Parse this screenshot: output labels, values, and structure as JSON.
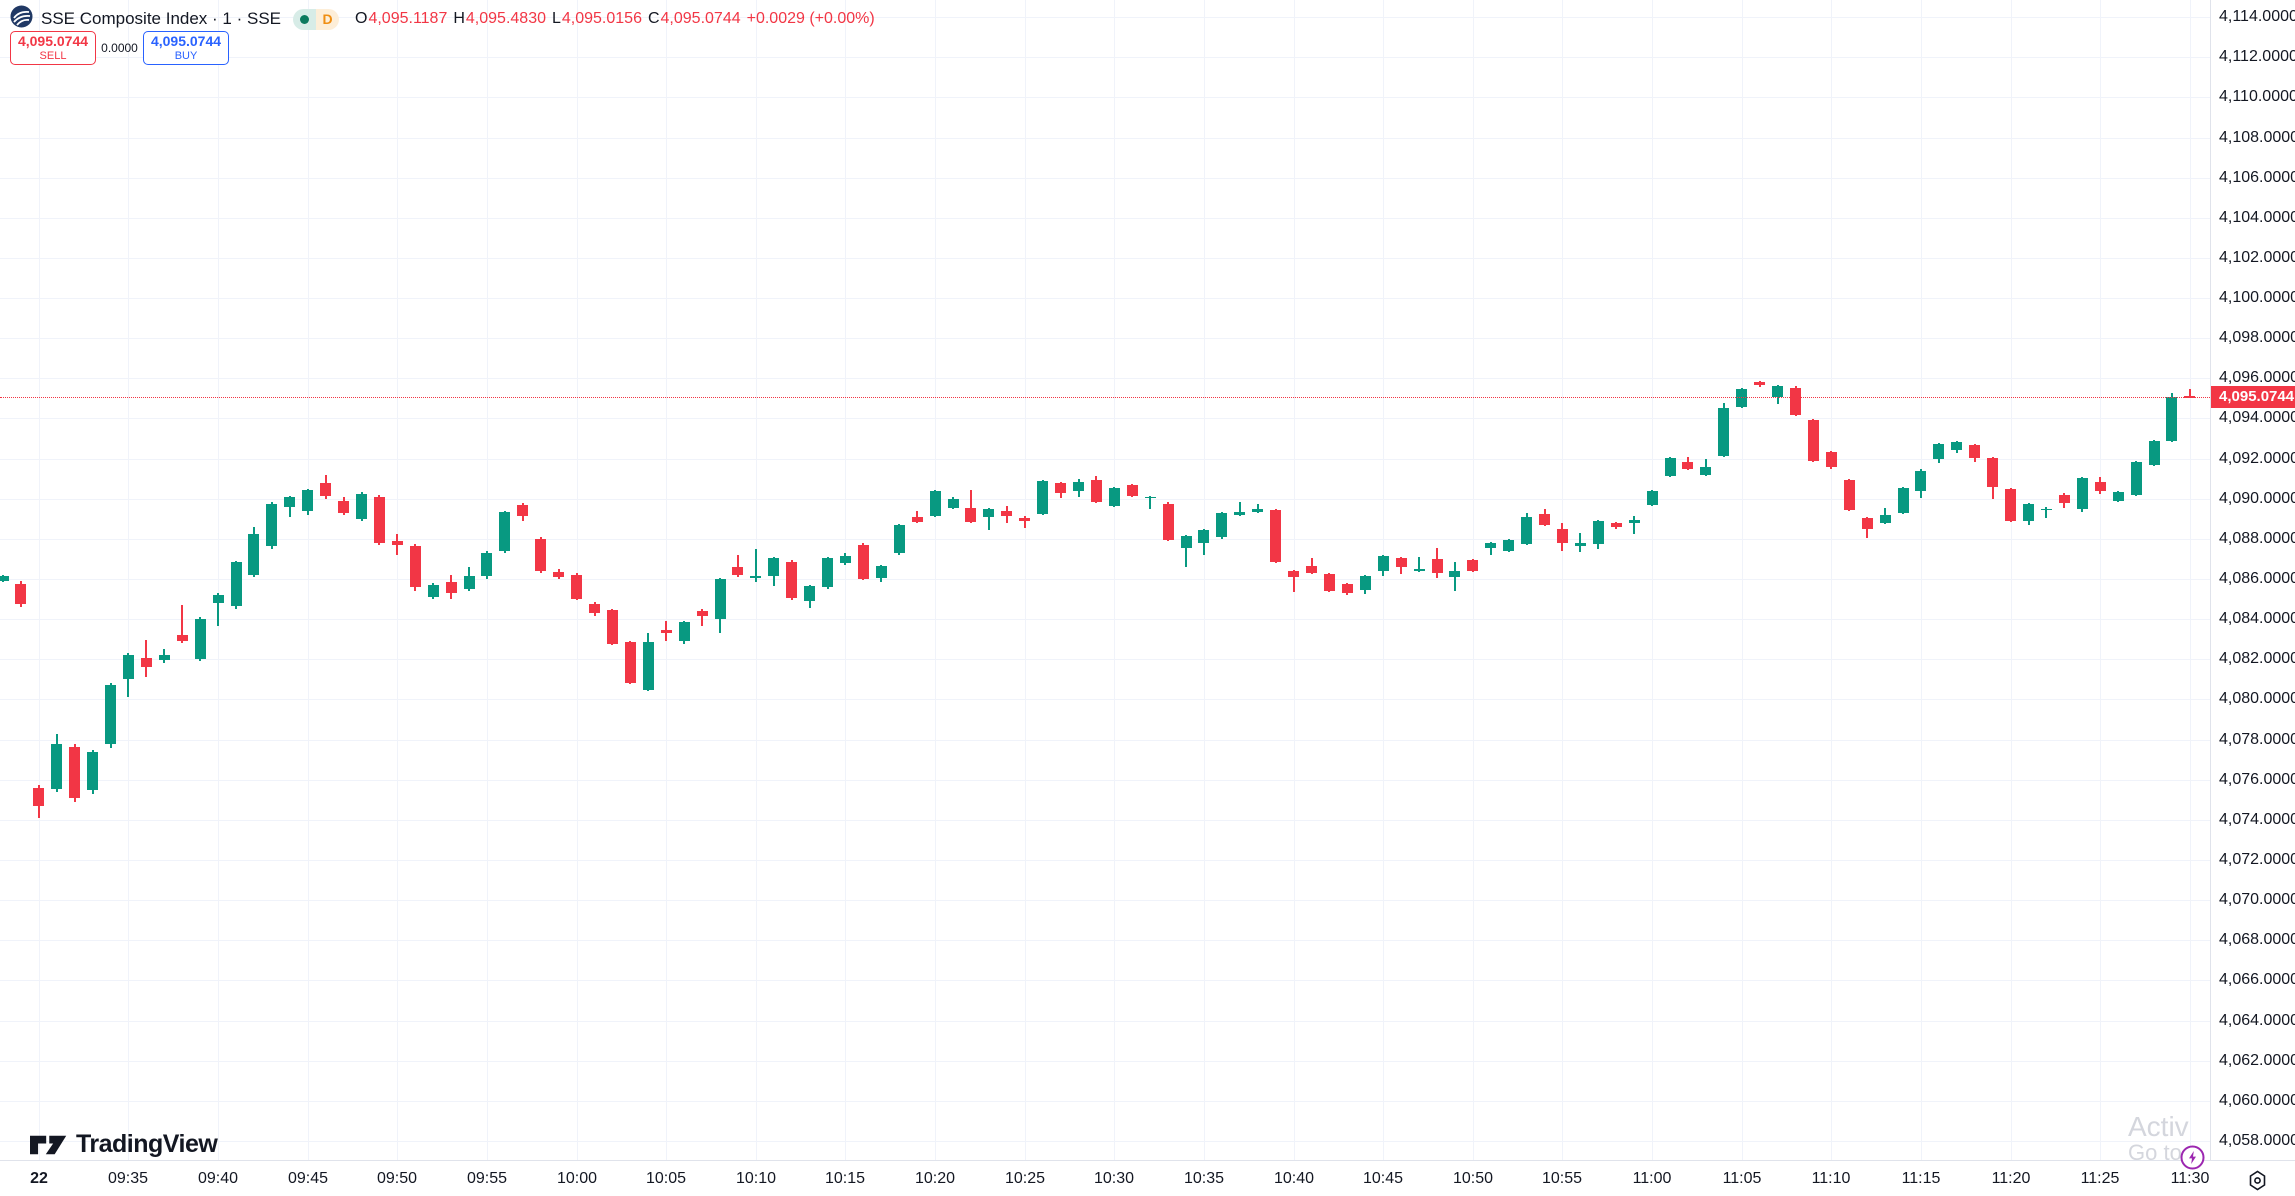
{
  "header": {
    "symbol_title": "SSE Composite Index · 1 · SSE",
    "status_badge": {
      "letter": "D"
    },
    "ohlc": {
      "o_label": "O",
      "o": "4,095.1187",
      "h_label": "H",
      "h": "4,095.4830",
      "l_label": "L",
      "l": "4,095.0156",
      "c_label": "C",
      "c": "4,095.0744",
      "change": "+0.0029 (+0.00%)"
    },
    "sell_button": {
      "price": "4,095.0744",
      "label": "SELL"
    },
    "spread": "0.0000",
    "buy_button": {
      "price": "4,095.0744",
      "label": "BUY"
    }
  },
  "price_line": {
    "value": 4095.0744,
    "label": "4,095.0744"
  },
  "watermark": {
    "line1": "Activ",
    "line2": "Go to s"
  },
  "footer": {
    "brand": "TradingView"
  },
  "colors": {
    "up": "#089981",
    "down": "#f23645",
    "buy": "#2962ff",
    "sell": "#f23645",
    "price_tag": "#f23645",
    "text": "#131722",
    "grid": "#f0f3fa",
    "bolt": "#9c27b0"
  },
  "chart_data": {
    "type": "candlestick",
    "title": "SSE Composite Index 1-minute",
    "ylim": [
      4057.0,
      4114.9
    ],
    "price_axis_ticks": [
      4114,
      4112,
      4110,
      4108,
      4106,
      4104,
      4102,
      4100,
      4098,
      4096,
      4094,
      4092,
      4090,
      4088,
      4086,
      4084,
      4082,
      4080,
      4078,
      4076,
      4074,
      4072,
      4070,
      4068,
      4066,
      4064,
      4062,
      4060,
      4058
    ],
    "time_ticks": [
      {
        "i": 2,
        "text": "22",
        "bold": true
      },
      {
        "i": 7,
        "text": "09:35"
      },
      {
        "i": 12,
        "text": "09:40"
      },
      {
        "i": 17,
        "text": "09:45"
      },
      {
        "i": 22,
        "text": "09:50"
      },
      {
        "i": 27,
        "text": "09:55"
      },
      {
        "i": 32,
        "text": "10:00"
      },
      {
        "i": 37,
        "text": "10:05"
      },
      {
        "i": 42,
        "text": "10:10"
      },
      {
        "i": 47,
        "text": "10:15"
      },
      {
        "i": 52,
        "text": "10:20"
      },
      {
        "i": 57,
        "text": "10:25"
      },
      {
        "i": 62,
        "text": "10:30"
      },
      {
        "i": 67,
        "text": "10:35"
      },
      {
        "i": 72,
        "text": "10:40"
      },
      {
        "i": 77,
        "text": "10:45"
      },
      {
        "i": 82,
        "text": "10:50"
      },
      {
        "i": 87,
        "text": "10:55"
      },
      {
        "i": 92,
        "text": "11:00"
      },
      {
        "i": 97,
        "text": "11:05"
      },
      {
        "i": 102,
        "text": "11:10"
      },
      {
        "i": 107,
        "text": "11:15"
      },
      {
        "i": 112,
        "text": "11:20"
      },
      {
        "i": 117,
        "text": "11:25"
      },
      {
        "i": 122,
        "text": "11:30"
      }
    ],
    "candles": [
      [
        "09:28",
        4085.9,
        4086.2,
        4085.85,
        4086.15
      ],
      [
        "09:29",
        4085.75,
        4085.9,
        4084.6,
        4084.75
      ],
      [
        "09:30",
        4075.6,
        4075.75,
        4074.1,
        4074.7
      ],
      [
        "09:31",
        4075.55,
        4078.3,
        4075.4,
        4077.8
      ],
      [
        "09:32",
        4077.65,
        4077.8,
        4074.9,
        4075.1
      ],
      [
        "09:33",
        4075.5,
        4077.5,
        4075.3,
        4077.4
      ],
      [
        "09:34",
        4077.8,
        4080.8,
        4077.6,
        4080.7
      ],
      [
        "09:35",
        4081.0,
        4082.3,
        4080.1,
        4082.2
      ],
      [
        "09:36",
        4082.05,
        4082.95,
        4081.1,
        4081.6
      ],
      [
        "09:37",
        4081.95,
        4082.5,
        4081.8,
        4082.2
      ],
      [
        "09:38",
        4083.2,
        4084.7,
        4082.8,
        4082.9
      ],
      [
        "09:39",
        4082.0,
        4084.1,
        4081.9,
        4084.0
      ],
      [
        "09:40",
        4084.8,
        4085.3,
        4083.65,
        4085.2
      ],
      [
        "09:41",
        4084.65,
        4086.9,
        4084.5,
        4086.85
      ],
      [
        "09:42",
        4086.2,
        4088.6,
        4086.1,
        4088.25
      ],
      [
        "09:43",
        4087.65,
        4089.85,
        4087.5,
        4089.75
      ],
      [
        "09:44",
        4089.6,
        4090.15,
        4089.1,
        4090.1
      ],
      [
        "09:45",
        4089.4,
        4090.5,
        4089.2,
        4090.45
      ],
      [
        "09:46",
        4090.8,
        4091.2,
        4090.0,
        4090.15
      ],
      [
        "09:47",
        4089.9,
        4090.1,
        4089.2,
        4089.3
      ],
      [
        "09:48",
        4089.0,
        4090.35,
        4088.9,
        4090.25
      ],
      [
        "09:49",
        4090.1,
        4090.2,
        4087.7,
        4087.8
      ],
      [
        "09:50",
        4087.9,
        4088.25,
        4087.2,
        4087.7
      ],
      [
        "09:51",
        4087.65,
        4087.75,
        4085.4,
        4085.6
      ],
      [
        "09:52",
        4085.1,
        4085.8,
        4085.0,
        4085.7
      ],
      [
        "09:53",
        4085.85,
        4086.2,
        4085.0,
        4085.3
      ],
      [
        "09:54",
        4085.5,
        4086.6,
        4085.4,
        4086.15
      ],
      [
        "09:55",
        4086.15,
        4087.4,
        4086.0,
        4087.3
      ],
      [
        "09:56",
        4087.4,
        4089.4,
        4087.3,
        4089.35
      ],
      [
        "09:57",
        4089.7,
        4089.8,
        4088.9,
        4089.15
      ],
      [
        "09:58",
        4088.0,
        4088.1,
        4086.3,
        4086.4
      ],
      [
        "09:59",
        4086.35,
        4086.5,
        4086.0,
        4086.1
      ],
      [
        "10:00",
        4086.2,
        4086.3,
        4084.95,
        4085.0
      ],
      [
        "10:01",
        4084.75,
        4084.85,
        4084.15,
        4084.3
      ],
      [
        "10:02",
        4084.45,
        4084.5,
        4082.7,
        4082.75
      ],
      [
        "10:03",
        4082.85,
        4082.9,
        4080.75,
        4080.8
      ],
      [
        "10:04",
        4080.45,
        4083.3,
        4080.4,
        4082.85
      ],
      [
        "10:05",
        4083.45,
        4083.9,
        4082.9,
        4083.3
      ],
      [
        "10:06",
        4082.9,
        4083.9,
        4082.75,
        4083.85
      ],
      [
        "10:07",
        4084.4,
        4084.5,
        4083.65,
        4084.15
      ],
      [
        "10:08",
        4084.0,
        4086.05,
        4083.3,
        4086.0
      ],
      [
        "10:09",
        4086.6,
        4087.2,
        4086.1,
        4086.2
      ],
      [
        "10:10",
        4086.05,
        4087.5,
        4085.85,
        4086.15
      ],
      [
        "10:11",
        4086.15,
        4087.1,
        4085.65,
        4087.05
      ],
      [
        "10:12",
        4086.85,
        4086.95,
        4084.95,
        4085.05
      ],
      [
        "10:13",
        4084.9,
        4085.7,
        4084.55,
        4085.65
      ],
      [
        "10:14",
        4085.6,
        4087.1,
        4085.5,
        4087.05
      ],
      [
        "10:15",
        4086.8,
        4087.3,
        4086.7,
        4087.15
      ],
      [
        "10:16",
        4087.7,
        4087.8,
        4085.95,
        4086.0
      ],
      [
        "10:17",
        4086.05,
        4086.7,
        4085.85,
        4086.65
      ],
      [
        "10:18",
        4087.3,
        4088.75,
        4087.2,
        4088.7
      ],
      [
        "10:19",
        4089.1,
        4089.4,
        4088.8,
        4088.85
      ],
      [
        "10:20",
        4089.15,
        4090.45,
        4089.1,
        4090.4
      ],
      [
        "10:21",
        4089.55,
        4090.1,
        4089.5,
        4090.0
      ],
      [
        "10:22",
        4089.55,
        4090.45,
        4088.8,
        4088.85
      ],
      [
        "10:23",
        4089.1,
        4089.55,
        4088.45,
        4089.5
      ],
      [
        "10:24",
        4089.4,
        4089.65,
        4088.8,
        4089.15
      ],
      [
        "10:25",
        4089.05,
        4089.15,
        4088.55,
        4088.9
      ],
      [
        "10:26",
        4089.25,
        4090.95,
        4089.2,
        4090.9
      ],
      [
        "10:27",
        4090.8,
        4090.85,
        4090.05,
        4090.3
      ],
      [
        "10:28",
        4090.4,
        4091.0,
        4090.1,
        4090.85
      ],
      [
        "10:29",
        4090.95,
        4091.15,
        4089.8,
        4089.85
      ],
      [
        "10:30",
        4089.65,
        4090.6,
        4089.6,
        4090.55
      ],
      [
        "10:31",
        4090.7,
        4090.75,
        4090.1,
        4090.15
      ],
      [
        "10:32",
        4090.1,
        4090.15,
        4089.5,
        4090.1
      ],
      [
        "10:33",
        4089.75,
        4089.85,
        4087.9,
        4087.95
      ],
      [
        "10:34",
        4087.55,
        4088.2,
        4086.6,
        4088.15
      ],
      [
        "10:35",
        4087.8,
        4088.5,
        4087.2,
        4088.45
      ],
      [
        "10:36",
        4088.1,
        4089.35,
        4088.0,
        4089.3
      ],
      [
        "10:37",
        4089.2,
        4089.85,
        4089.15,
        4089.35
      ],
      [
        "10:38",
        4089.35,
        4089.75,
        4089.3,
        4089.5
      ],
      [
        "10:39",
        4089.45,
        4089.5,
        4086.8,
        4086.85
      ],
      [
        "10:40",
        4086.4,
        4086.45,
        4085.35,
        4086.1
      ],
      [
        "10:41",
        4086.65,
        4087.05,
        4086.25,
        4086.3
      ],
      [
        "10:42",
        4086.25,
        4086.3,
        4085.35,
        4085.4
      ],
      [
        "10:43",
        4085.75,
        4085.8,
        4085.2,
        4085.3
      ],
      [
        "10:44",
        4085.45,
        4086.2,
        4085.25,
        4086.15
      ],
      [
        "10:45",
        4086.4,
        4087.2,
        4086.15,
        4087.15
      ],
      [
        "10:46",
        4087.05,
        4087.1,
        4086.25,
        4086.6
      ],
      [
        "10:47",
        4086.4,
        4087.1,
        4086.35,
        4086.5
      ],
      [
        "10:48",
        4087.0,
        4087.55,
        4086.05,
        4086.3
      ],
      [
        "10:49",
        4086.1,
        4086.85,
        4085.4,
        4086.4
      ],
      [
        "10:50",
        4086.95,
        4087.0,
        4086.35,
        4086.4
      ],
      [
        "10:51",
        4087.55,
        4087.85,
        4087.2,
        4087.8
      ],
      [
        "10:52",
        4087.4,
        4088.0,
        4087.35,
        4087.95
      ],
      [
        "10:53",
        4087.75,
        4089.3,
        4087.7,
        4089.1
      ],
      [
        "10:54",
        4089.25,
        4089.5,
        4088.65,
        4088.7
      ],
      [
        "10:55",
        4088.5,
        4088.8,
        4087.4,
        4087.8
      ],
      [
        "10:56",
        4087.65,
        4088.3,
        4087.35,
        4087.8
      ],
      [
        "10:57",
        4087.75,
        4088.95,
        4087.5,
        4088.9
      ],
      [
        "10:58",
        4088.8,
        4088.85,
        4088.5,
        4088.6
      ],
      [
        "10:59",
        4088.8,
        4089.15,
        4088.25,
        4088.95
      ],
      [
        "11:00",
        4089.7,
        4090.45,
        4089.65,
        4090.4
      ],
      [
        "11:01",
        4091.15,
        4092.1,
        4091.1,
        4092.05
      ],
      [
        "11:02",
        4091.85,
        4092.1,
        4091.45,
        4091.5
      ],
      [
        "11:03",
        4091.2,
        4092.0,
        4091.15,
        4091.6
      ],
      [
        "11:04",
        4092.15,
        4094.75,
        4092.1,
        4094.5
      ],
      [
        "11:05",
        4094.55,
        4095.5,
        4094.5,
        4095.45
      ],
      [
        "11:06",
        4095.8,
        4095.85,
        4095.55,
        4095.65
      ],
      [
        "11:07",
        4095.05,
        4095.65,
        4094.7,
        4095.6
      ],
      [
        "11:08",
        4095.5,
        4095.6,
        4094.1,
        4094.15
      ],
      [
        "11:09",
        4093.9,
        4093.95,
        4091.85,
        4091.9
      ],
      [
        "11:10",
        4092.35,
        4092.4,
        4091.5,
        4091.6
      ],
      [
        "11:11",
        4090.95,
        4091.0,
        4089.4,
        4089.45
      ],
      [
        "11:12",
        4089.05,
        4089.1,
        4088.05,
        4088.5
      ],
      [
        "11:13",
        4088.8,
        4089.55,
        4088.75,
        4089.2
      ],
      [
        "11:14",
        4089.3,
        4090.6,
        4089.25,
        4090.55
      ],
      [
        "11:15",
        4090.4,
        4091.5,
        4090.05,
        4091.4
      ],
      [
        "11:16",
        4092.0,
        4092.8,
        4091.8,
        4092.75
      ],
      [
        "11:17",
        4092.45,
        4092.9,
        4092.3,
        4092.85
      ],
      [
        "11:18",
        4092.7,
        4092.75,
        4091.85,
        4092.05
      ],
      [
        "11:19",
        4092.05,
        4092.1,
        4090.0,
        4090.6
      ],
      [
        "11:20",
        4090.5,
        4090.55,
        4088.85,
        4088.9
      ],
      [
        "11:21",
        4088.9,
        4089.8,
        4088.7,
        4089.75
      ],
      [
        "11:22",
        4089.45,
        4089.6,
        4089.05,
        4089.5
      ],
      [
        "11:23",
        4090.2,
        4090.3,
        4089.55,
        4089.8
      ],
      [
        "11:24",
        4089.5,
        4091.1,
        4089.35,
        4091.05
      ],
      [
        "11:25",
        4090.85,
        4091.1,
        4090.25,
        4090.4
      ],
      [
        "11:26",
        4089.9,
        4090.4,
        4089.85,
        4090.35
      ],
      [
        "11:27",
        4090.2,
        4091.9,
        4090.15,
        4091.85
      ],
      [
        "11:28",
        4091.7,
        4092.95,
        4091.65,
        4092.9
      ],
      [
        "11:29",
        4092.9,
        4095.25,
        4092.85,
        4095.05
      ],
      [
        "11:30",
        4095.1187,
        4095.483,
        4095.0156,
        4095.0744
      ]
    ]
  }
}
